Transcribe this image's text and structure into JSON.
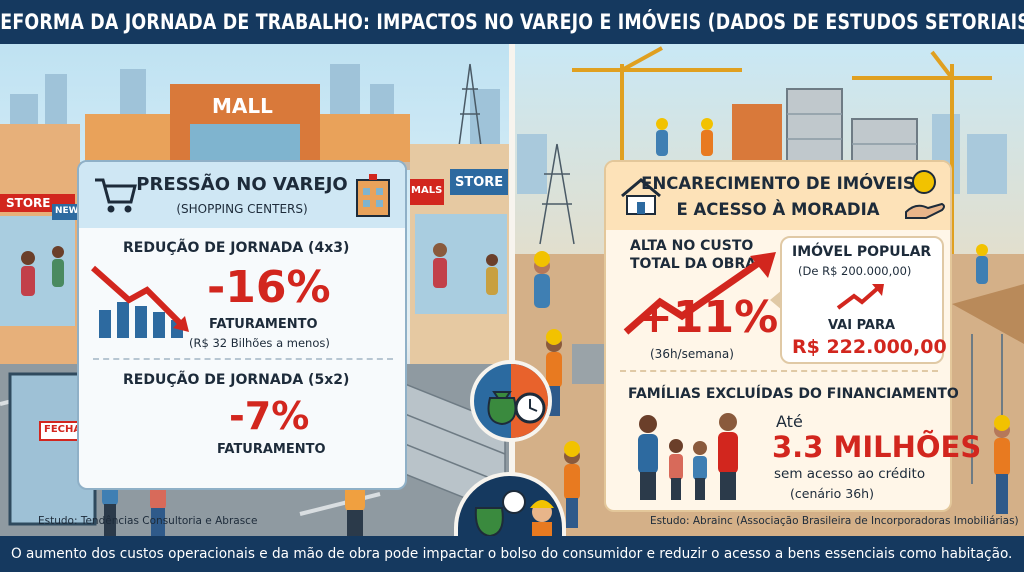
{
  "title": "REFORMA DA JORNADA DE TRABALHO: IMPACTOS NO VAREJO E IMÓVEIS (DADOS DE ESTUDOS SETORIAIS)",
  "footer": "O aumento dos custos operacionais e da mão de obra pode impactar o bolso do consumidor e reduzir o acesso a bens essenciais como habitação.",
  "scene_signs": {
    "mall": "MALL",
    "store1": "STORE",
    "store2": "NEW",
    "mals": "MALS",
    "store3": "STORE",
    "fechado": "FECHADO"
  },
  "retail": {
    "title": "PRESSÃO NO VAREJO",
    "subtitle": "(SHOPPING CENTERS)",
    "block1_label": "REDUÇÃO DE JORNADA (4x3)",
    "block1_value": "-16%",
    "block1_metric": "FATURAMENTO",
    "block1_note": "(R$ 32 Bilhões a menos)",
    "block2_label": "REDUÇÃO DE JORNADA (5x2)",
    "block2_value": "-7%",
    "block2_metric": "FATURAMENTO",
    "source": "Estudo: Tendências Consultoria e Abrasce"
  },
  "housing": {
    "title_line1": "ENCARECIMENTO DE IMÓVEIS",
    "title_line2": "E ACESSO À MORADIA",
    "cost_label_line1": "ALTA NO CUSTO",
    "cost_label_line2": "TOTAL DA OBRA",
    "cost_value": "+11%",
    "cost_note": "(36h/semana)",
    "popular_label": "IMÓVEL POPULAR",
    "popular_from": "(De R$ 200.000,00)",
    "popular_goes": "VAI PARA",
    "popular_to": "R$ 222.000,00",
    "excluded_label": "FAMÍLIAS EXCLUÍDAS DO FINANCIAMENTO",
    "excluded_prefix": "Até",
    "excluded_value": "3.3 MILHÕES",
    "excluded_note1": "sem acesso ao crédito",
    "excluded_note2": "(cenário 36h)",
    "source": "Estudo: Abrainc (Associação Brasileira de Incorporadoras Imobiliárias)"
  },
  "colors": {
    "navy": "#15395f",
    "red": "#d2261e",
    "blue_panel": "#cfe7f4",
    "orange_panel": "#fde2b8"
  },
  "icons": [
    "shopping-cart-icon",
    "building-icon",
    "house-icon",
    "coin-icon",
    "hand-icon",
    "money-bag-icon",
    "clock-icon",
    "worker-icon",
    "down-chart-icon",
    "up-arrow-icon"
  ]
}
